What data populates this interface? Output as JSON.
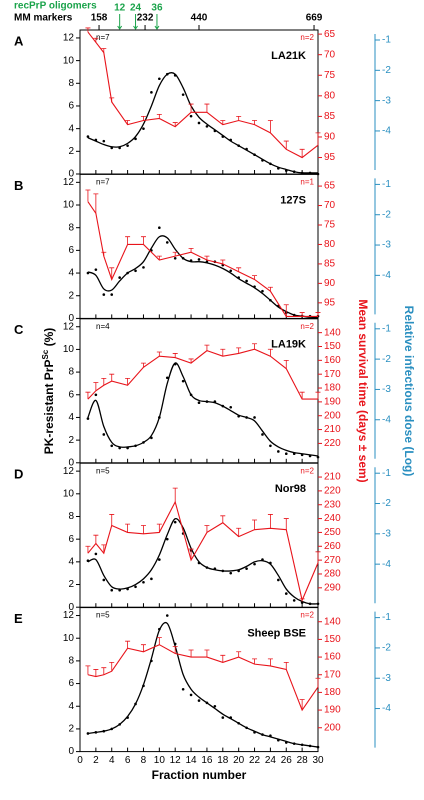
{
  "chart_data": [
    {
      "type": "scatter_fit",
      "label": "A",
      "name": "LA21K",
      "n_left": "n=7",
      "n_right": "n=2",
      "top_axis": {
        "oligomer_title": "recPrP oligomers",
        "oligomer_color": "#1aa34a",
        "oligomers": [
          {
            "value": 5,
            "label": "12"
          },
          {
            "value": 7,
            "label": "24"
          },
          {
            "value": 9.7,
            "label": "36"
          }
        ],
        "marker_title": "MM markers",
        "markers": [
          {
            "value": 2.4,
            "label": "158"
          },
          {
            "value": 8.2,
            "label": "232"
          },
          {
            "value": 15,
            "label": "440"
          },
          {
            "value": 29.5,
            "label": "669"
          }
        ]
      },
      "ylim": [
        0,
        12.7
      ],
      "yticks": [
        0,
        2,
        4,
        6,
        8,
        10,
        12
      ],
      "y2lim": [
        64,
        99
      ],
      "y2ticks": [
        65,
        70,
        75,
        80,
        85,
        90,
        95
      ],
      "y2_reversed": true,
      "y3lim": [
        -5.42,
        -0.67
      ],
      "y3ticks": [
        -1,
        -2,
        -3,
        -4
      ],
      "x": [
        1,
        2,
        3,
        4,
        5,
        6,
        7,
        8,
        9,
        10,
        11,
        12,
        13,
        14,
        15,
        16,
        17,
        18,
        19,
        20,
        21,
        22,
        23,
        24,
        25,
        26,
        27,
        28,
        29,
        30
      ],
      "points": {
        "color": "#000000",
        "values": [
          3.3,
          3.0,
          2.9,
          2.3,
          2.3,
          2.5,
          3.1,
          4.0,
          7.2,
          8.4,
          8.8,
          8.7,
          7.0,
          5.1,
          4.5,
          4.2,
          3.8,
          3.3,
          3.0,
          2.5,
          2.2,
          1.7,
          1.2,
          0.9,
          0.5,
          0.3,
          0.2,
          0.1,
          0.1,
          0.0
        ]
      },
      "fit": {
        "color": "#000000",
        "values": [
          3.2,
          2.9,
          2.6,
          2.4,
          2.4,
          2.7,
          3.3,
          4.4,
          6.0,
          7.8,
          8.8,
          8.8,
          7.6,
          6.0,
          5.0,
          4.4,
          3.9,
          3.4,
          2.9,
          2.5,
          2.1,
          1.7,
          1.3,
          0.9,
          0.6,
          0.4,
          0.2,
          0.1,
          0.1,
          0.1
        ]
      },
      "survival": {
        "color": "#e8141b",
        "axis": "y2",
        "x": [
          1,
          2,
          3,
          4,
          6,
          8,
          10,
          12,
          14,
          16,
          18,
          20,
          22,
          24,
          26,
          28,
          30
        ],
        "values": [
          64.5,
          67,
          69.5,
          81.5,
          87,
          86,
          85.5,
          87.5,
          84,
          84,
          87,
          86,
          87,
          89,
          93,
          95,
          92
        ],
        "errors": [
          1,
          1,
          1,
          1,
          1,
          1,
          1,
          1,
          2,
          2,
          1,
          1,
          1,
          3,
          2,
          2,
          3
        ]
      }
    },
    {
      "type": "scatter_fit",
      "label": "B",
      "name": "127S",
      "n_left": "n=7",
      "n_right": "n=1",
      "ylim": [
        0,
        12.7
      ],
      "yticks": [
        0,
        2,
        4,
        6,
        8,
        10,
        12
      ],
      "y2lim": [
        62,
        99
      ],
      "y2ticks": [
        65,
        70,
        75,
        80,
        85,
        90,
        95
      ],
      "y2_reversed": true,
      "y3lim": [
        -5.42,
        -0.67
      ],
      "y3ticks": [
        -1,
        -2,
        -3,
        -4
      ],
      "x": [
        1,
        2,
        3,
        4,
        5,
        6,
        7,
        8,
        9,
        10,
        11,
        12,
        13,
        14,
        15,
        16,
        17,
        18,
        19,
        20,
        21,
        22,
        23,
        24,
        25,
        26,
        27,
        28,
        29,
        30
      ],
      "points": {
        "color": "#000000",
        "values": [
          4.0,
          4.3,
          2.1,
          2.1,
          3.6,
          4.0,
          4.2,
          4.5,
          6.0,
          8.0,
          6.7,
          5.3,
          5.3,
          5.1,
          5.2,
          5.0,
          5.0,
          4.7,
          4.2,
          3.6,
          3.3,
          2.8,
          2.4,
          1.6,
          1.1,
          0.5,
          0.3,
          0.2,
          0.2,
          0.2
        ]
      },
      "fit": {
        "color": "#000000",
        "values": [
          4.1,
          3.8,
          2.6,
          2.5,
          3.3,
          4.0,
          4.4,
          5.0,
          6.2,
          7.2,
          7.1,
          6.1,
          5.3,
          5.0,
          5.0,
          4.9,
          4.7,
          4.4,
          4.0,
          3.5,
          3.1,
          2.7,
          2.2,
          1.6,
          1.0,
          0.6,
          0.3,
          0.2,
          0.1,
          0.1
        ]
      },
      "survival": {
        "color": "#e8141b",
        "axis": "y2",
        "x": [
          1,
          2,
          3,
          4,
          6,
          8,
          10,
          12,
          14,
          16,
          18,
          20,
          22,
          24,
          26,
          28,
          30
        ],
        "values": [
          69,
          72,
          83,
          89,
          80,
          80,
          84,
          83,
          82,
          84,
          85,
          87,
          89,
          92,
          98.5,
          98.5,
          98.5
        ],
        "errors": [
          3,
          5,
          1,
          3,
          2,
          2,
          1,
          1,
          1,
          1,
          1,
          1,
          1,
          1,
          3,
          1,
          1
        ]
      }
    },
    {
      "type": "scatter_fit",
      "label": "C",
      "name": "LA19K",
      "n_left": "n=4",
      "n_right": "n=2",
      "ylabel": "PK-resistant PrP",
      "ylabel_sup": "Sc",
      "ylabel_unit": " (%)",
      "y2label": "Mean survival time (days ± sem)",
      "y3label": "Relative infectious dose (Log)",
      "y3color": "#2a8fc0",
      "ylim": [
        0,
        12.7
      ],
      "yticks": [
        0,
        2,
        4,
        6,
        8,
        10,
        12
      ],
      "y2lim": [
        130,
        234
      ],
      "y2ticks": [
        140,
        150,
        160,
        170,
        180,
        190,
        200,
        210,
        220
      ],
      "y2_reversed": true,
      "y3lim": [
        -5.42,
        -0.67
      ],
      "y3ticks": [
        -1,
        -2,
        -3,
        -4
      ],
      "x": [
        1,
        2,
        3,
        4,
        5,
        6,
        7,
        8,
        9,
        10,
        11,
        12,
        13,
        14,
        15,
        16,
        17,
        18,
        19,
        20,
        21,
        22,
        23,
        24,
        25,
        26,
        27,
        28,
        29,
        30
      ],
      "points": {
        "color": "#000000",
        "values": [
          3.9,
          6.0,
          2.5,
          1.5,
          1.3,
          1.3,
          1.5,
          1.8,
          2.2,
          4.0,
          7.5,
          8.7,
          7.2,
          6.0,
          5.3,
          5.4,
          5.4,
          5.0,
          4.9,
          4.1,
          4.0,
          4.0,
          2.5,
          1.5,
          1.0,
          0.8,
          0.8,
          0.7,
          0.6,
          0.5
        ]
      },
      "fit": {
        "color": "#000000",
        "values": [
          4.0,
          5.5,
          3.2,
          1.8,
          1.4,
          1.4,
          1.5,
          1.8,
          2.4,
          4.0,
          7.0,
          8.8,
          7.6,
          6.0,
          5.5,
          5.4,
          5.3,
          5.0,
          4.6,
          4.2,
          4.0,
          3.7,
          2.8,
          1.9,
          1.4,
          1.1,
          0.9,
          0.8,
          0.7,
          0.6
        ]
      },
      "survival": {
        "color": "#e8141b",
        "axis": "y2",
        "x": [
          1,
          2,
          3,
          4,
          6,
          8,
          10,
          12,
          14,
          16,
          18,
          20,
          22,
          24,
          26,
          28,
          30
        ],
        "values": [
          188,
          182,
          178,
          175,
          178,
          165,
          157,
          158,
          162,
          153,
          157,
          155,
          152,
          157,
          166,
          188,
          188
        ],
        "errors": [
          5,
          6,
          5,
          5,
          5,
          3,
          3,
          3,
          3,
          4,
          5,
          4,
          4,
          5,
          6,
          5,
          5
        ]
      }
    },
    {
      "type": "scatter_fit",
      "label": "D",
      "name": "Nor98",
      "n_left": "n=5",
      "n_right": "n=2",
      "ylim": [
        0,
        12.7
      ],
      "yticks": [
        0,
        2,
        4,
        6,
        8,
        10,
        12
      ],
      "y2lim": [
        200,
        304
      ],
      "y2ticks": [
        210,
        220,
        230,
        240,
        250,
        260,
        270,
        280,
        290
      ],
      "y2_reversed": true,
      "y3lim": [
        -5.42,
        -0.67
      ],
      "y3ticks": [
        -1,
        -2,
        -3,
        -4
      ],
      "x": [
        1,
        2,
        3,
        4,
        5,
        6,
        7,
        8,
        9,
        10,
        11,
        12,
        13,
        14,
        15,
        16,
        17,
        18,
        19,
        20,
        21,
        22,
        23,
        24,
        25,
        26,
        27,
        28,
        29,
        30
      ],
      "points": {
        "color": "#000000",
        "values": [
          4.1,
          4.7,
          2.4,
          1.5,
          1.5,
          1.6,
          1.8,
          2.2,
          2.5,
          4.2,
          6.0,
          7.5,
          6.5,
          5.0,
          3.9,
          3.5,
          3.4,
          3.2,
          3.0,
          3.2,
          3.4,
          3.8,
          4.2,
          3.9,
          2.4,
          1.2,
          0.6,
          0.4,
          0.3,
          0.3
        ]
      },
      "fit": {
        "color": "#000000",
        "values": [
          4.0,
          4.2,
          2.8,
          1.8,
          1.6,
          1.7,
          2.0,
          2.5,
          3.3,
          4.6,
          6.4,
          7.8,
          7.0,
          5.2,
          4.0,
          3.5,
          3.3,
          3.2,
          3.2,
          3.3,
          3.6,
          4.0,
          4.1,
          3.8,
          2.8,
          1.6,
          0.9,
          0.5,
          0.3,
          0.3
        ]
      },
      "survival": {
        "color": "#e8141b",
        "axis": "y2",
        "x": [
          1,
          2,
          3,
          4,
          6,
          8,
          10,
          12,
          14,
          16,
          18,
          20,
          22,
          24,
          26,
          28,
          30
        ],
        "values": [
          265,
          258,
          265,
          245,
          250,
          251,
          250,
          228,
          270,
          250,
          243,
          253,
          248,
          247,
          248,
          299,
          272
        ],
        "errors": [
          5,
          6,
          6,
          8,
          6,
          6,
          6,
          10,
          8,
          5,
          5,
          6,
          7,
          10,
          8,
          1,
          8
        ]
      }
    },
    {
      "type": "scatter_fit",
      "label": "E",
      "name": "Sheep BSE",
      "n_left": "n=5",
      "n_right": "n=2",
      "xlabel": "Fraction number",
      "xlim": [
        0,
        30
      ],
      "xticks": [
        0,
        2,
        4,
        6,
        8,
        10,
        12,
        14,
        16,
        18,
        20,
        22,
        24,
        26,
        28,
        30
      ],
      "ylim": [
        0,
        12.7
      ],
      "yticks": [
        0,
        2,
        4,
        6,
        8,
        10,
        12
      ],
      "y2lim": [
        132,
        213.5
      ],
      "y2ticks": [
        140,
        150,
        160,
        170,
        180,
        190,
        200
      ],
      "y2_reversed": true,
      "y3lim": [
        -5.42,
        -0.67
      ],
      "y3ticks": [
        -1,
        -2,
        -3,
        -4
      ],
      "x": [
        1,
        2,
        3,
        4,
        5,
        6,
        7,
        8,
        9,
        10,
        11,
        12,
        13,
        14,
        15,
        16,
        17,
        18,
        19,
        20,
        21,
        22,
        23,
        24,
        25,
        26,
        27,
        28,
        29,
        30
      ],
      "points": {
        "color": "#000000",
        "values": [
          1.6,
          1.7,
          1.8,
          2.0,
          2.4,
          3.0,
          4.2,
          5.8,
          8.0,
          10.8,
          12.0,
          9.5,
          5.5,
          5.0,
          4.5,
          4.3,
          4.0,
          3.0,
          3.0,
          2.5,
          2.1,
          1.7,
          1.5,
          1.4,
          1.0,
          0.8,
          0.7,
          0.6,
          0.5,
          0.4
        ]
      },
      "fit": {
        "color": "#000000",
        "values": [
          1.6,
          1.7,
          1.8,
          2.0,
          2.4,
          3.1,
          4.2,
          5.9,
          8.2,
          10.7,
          11.3,
          9.3,
          6.8,
          5.5,
          4.8,
          4.3,
          3.8,
          3.3,
          2.9,
          2.5,
          2.1,
          1.8,
          1.5,
          1.3,
          1.1,
          0.9,
          0.7,
          0.6,
          0.5,
          0.4
        ]
      },
      "survival": {
        "color": "#e8141b",
        "axis": "y2",
        "x": [
          1,
          2,
          3,
          4,
          6,
          8,
          10,
          12,
          14,
          16,
          18,
          20,
          22,
          24,
          26,
          28,
          30
        ],
        "values": [
          170,
          171,
          170,
          168,
          155,
          157,
          153,
          158,
          160,
          160,
          163,
          160,
          164,
          165,
          167,
          190,
          177
        ],
        "errors": [
          5,
          4,
          4,
          5,
          4,
          4,
          4,
          4,
          4,
          4,
          4,
          3,
          3,
          4,
          4,
          6,
          5
        ]
      }
    }
  ]
}
